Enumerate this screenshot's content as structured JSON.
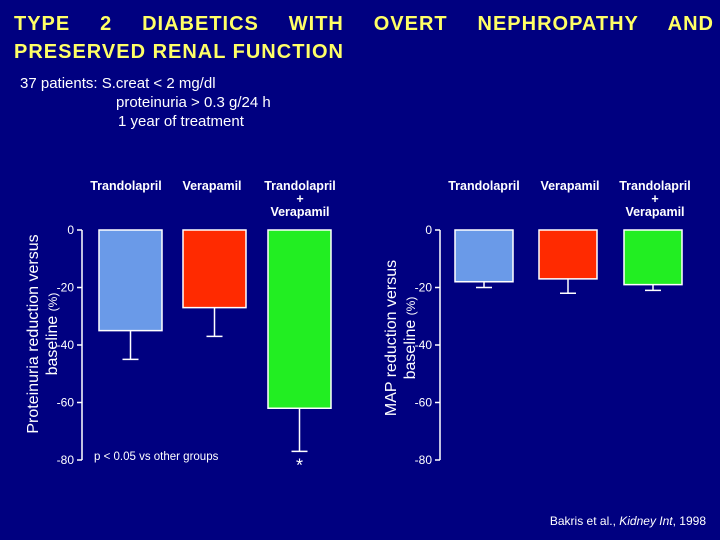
{
  "title": {
    "line1": "TYPE 2 DIABETICS WITH OVERT NEPHROPATHY AND",
    "line2": "PRESERVED RENAL FUNCTION"
  },
  "study": {
    "line1": "37 patients: S.creat < 2 mg/dl",
    "line2": "proteinuria > 0.3 g/24 h",
    "line3": "1 year of treatment"
  },
  "source": {
    "authors": "Bakris et al.,",
    "journal": "Kidney Int",
    "year": "1998"
  },
  "colors": {
    "trandolapril": "#6a9ae8",
    "verapamil": "#ff2a00",
    "combination": "#22ee22",
    "background": "#000080",
    "title": "#ffff66"
  },
  "chart_data": [
    {
      "type": "bar",
      "categories": [
        "Trandolapril",
        "Verapamil",
        "Trandolapril + Verapamil"
      ],
      "category_label_lines": [
        [
          "Trandolapril"
        ],
        [
          "Verapamil"
        ],
        [
          "Trandolapril",
          "+",
          "Verapamil"
        ]
      ],
      "values": [
        -35,
        -27,
        -62
      ],
      "errors": [
        10,
        10,
        15
      ],
      "ylabel_line1": "Proteinuria reduction versus",
      "ylabel_line2": "baseline",
      "ylabel_unit": "(%)",
      "yticks": [
        0,
        -20,
        -40,
        -60,
        -80
      ],
      "ylim": [
        -80,
        0
      ],
      "annotation": "p < 0.05 vs other groups",
      "significance_marker": "*",
      "significant_index": 2,
      "legend": "none",
      "grid": false
    },
    {
      "type": "bar",
      "categories": [
        "Trandolapril",
        "Verapamil",
        "Trandolapril + Verapamil"
      ],
      "category_label_lines": [
        [
          "Trandolapril"
        ],
        [
          "Verapamil"
        ],
        [
          "Trandolapril",
          "+",
          "Verapamil"
        ]
      ],
      "values": [
        -18,
        -17,
        -19
      ],
      "errors": [
        2,
        5,
        2
      ],
      "ylabel_line1": "MAP reduction versus",
      "ylabel_line2": "baseline",
      "ylabel_unit": "(%)",
      "yticks": [
        0,
        -20,
        -40,
        -60,
        -80
      ],
      "ylim": [
        -80,
        0
      ],
      "legend": "none",
      "grid": false
    }
  ]
}
